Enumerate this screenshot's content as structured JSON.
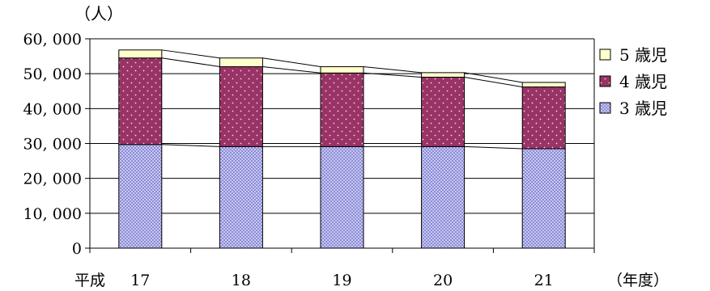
{
  "chart_data": {
    "type": "bar",
    "stacked": true,
    "y_unit_label": "（人）",
    "x_prefix": "平成",
    "x_suffix": "（年度）",
    "categories": [
      "17",
      "18",
      "19",
      "20",
      "21"
    ],
    "ylim": [
      0,
      60000
    ],
    "yticks": [
      0,
      10000,
      20000,
      30000,
      40000,
      50000,
      60000
    ],
    "ytick_labels": [
      "0",
      "10, 000",
      "20, 000",
      "30, 000",
      "40, 000",
      "50, 000",
      "60, 000"
    ],
    "grid": true,
    "series_lines": true,
    "legend_position": "right",
    "series": [
      {
        "name": "3 歳児",
        "values": [
          29700,
          29100,
          29100,
          29100,
          28500
        ],
        "color": "#a9a9e6",
        "pattern": "checker"
      },
      {
        "name": "4 歳児",
        "values": [
          24800,
          22900,
          21100,
          19900,
          17700
        ],
        "color": "#993366",
        "pattern": "dots"
      },
      {
        "name": "5 歳児",
        "values": [
          2300,
          2500,
          1800,
          1300,
          1300
        ],
        "color": "#ffffcc",
        "pattern": "none"
      }
    ]
  }
}
